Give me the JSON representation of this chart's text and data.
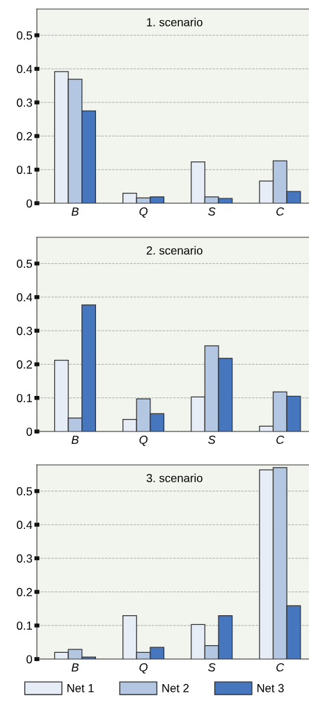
{
  "chart_data": [
    {
      "type": "bar",
      "title": "1. scenario",
      "categories": [
        "B",
        "Q",
        "S",
        "C"
      ],
      "ylim": [
        0,
        0.578
      ],
      "yticks": [
        0,
        0.1,
        0.2,
        0.3,
        0.4,
        0.5
      ],
      "grid": "y",
      "series": [
        {
          "color": "#e6edf7",
          "values": [
            0.392,
            0.03,
            0.123,
            0.066
          ]
        },
        {
          "color": "#b4c7e2",
          "values": [
            0.369,
            0.016,
            0.019,
            0.126
          ]
        },
        {
          "color": "#4676be",
          "values": [
            0.275,
            0.019,
            0.014,
            0.035
          ]
        }
      ]
    },
    {
      "type": "bar",
      "title": "2. scenario",
      "categories": [
        "B",
        "Q",
        "S",
        "C"
      ],
      "ylim": [
        0,
        0.578
      ],
      "yticks": [
        0,
        0.1,
        0.2,
        0.3,
        0.4,
        0.5
      ],
      "grid": "y",
      "series": [
        {
          "color": "#e6edf7",
          "values": [
            0.212,
            0.036,
            0.103,
            0.016
          ]
        },
        {
          "color": "#b4c7e2",
          "values": [
            0.04,
            0.097,
            0.255,
            0.118
          ]
        },
        {
          "color": "#4676be",
          "values": [
            0.377,
            0.053,
            0.218,
            0.105
          ]
        }
      ]
    },
    {
      "type": "bar",
      "title": "3. scenario",
      "categories": [
        "B",
        "Q",
        "S",
        "C"
      ],
      "ylim": [
        0,
        0.578
      ],
      "yticks": [
        0,
        0.1,
        0.2,
        0.3,
        0.4,
        0.5
      ],
      "grid": "y",
      "legend": "bottom",
      "series": [
        {
          "name": "Net 1",
          "color": "#e6edf7",
          "values": [
            0.02,
            0.129,
            0.103,
            0.563
          ]
        },
        {
          "name": "Net 2",
          "color": "#b4c7e2",
          "values": [
            0.029,
            0.02,
            0.04,
            0.57
          ]
        },
        {
          "name": "Net 3",
          "color": "#4676be",
          "values": [
            0.006,
            0.035,
            0.129,
            0.159
          ]
        }
      ]
    }
  ]
}
